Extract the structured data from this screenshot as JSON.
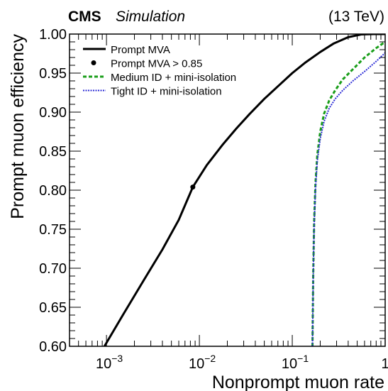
{
  "header": {
    "experiment": "CMS",
    "status": "Simulation",
    "energy": "(13 TeV)"
  },
  "chart_data": {
    "type": "line",
    "title": "",
    "xlabel": "Nonprompt muon rate",
    "ylabel": "Prompt muon efficiency",
    "xscale": "log",
    "xlim": [
      0.0004,
      1.0
    ],
    "ylim": [
      0.6,
      1.0
    ],
    "grid": false,
    "legend_position": "top-left",
    "x_tick_labels": [
      {
        "value": 0.001,
        "base": "10",
        "exp": "−3"
      },
      {
        "value": 0.01,
        "base": "10",
        "exp": "−2"
      },
      {
        "value": 0.1,
        "base": "10",
        "exp": "−1"
      },
      {
        "value": 1.0,
        "base": "1",
        "exp": ""
      }
    ],
    "y_tick_labels": [
      "0.60",
      "0.65",
      "0.70",
      "0.75",
      "0.80",
      "0.85",
      "0.90",
      "0.95",
      "1.00"
    ],
    "y_tick_values": [
      0.6,
      0.65,
      0.7,
      0.75,
      0.8,
      0.85,
      0.9,
      0.95,
      1.0
    ],
    "series": [
      {
        "name": "Prompt MVA",
        "style": "line",
        "color": "#000000",
        "x": [
          0.00095,
          0.0015,
          0.0025,
          0.004,
          0.006,
          0.0085,
          0.012,
          0.018,
          0.025,
          0.035,
          0.05,
          0.07,
          0.1,
          0.14,
          0.2,
          0.28,
          0.4,
          0.55,
          0.75,
          1.0
        ],
        "y": [
          0.6,
          0.64,
          0.684,
          0.724,
          0.762,
          0.804,
          0.832,
          0.859,
          0.879,
          0.898,
          0.917,
          0.933,
          0.95,
          0.964,
          0.977,
          0.988,
          0.996,
          0.9995,
          1.0,
          1.0
        ]
      },
      {
        "name": "Prompt MVA > 0.85",
        "style": "marker",
        "color": "#000000",
        "x": [
          0.0085
        ],
        "y": [
          0.804
        ]
      },
      {
        "name": "Medium ID + mini-isolation",
        "style": "dashed",
        "color": "#1a9e1a",
        "x": [
          0.165,
          0.168,
          0.172,
          0.178,
          0.186,
          0.2,
          0.22,
          0.25,
          0.29,
          0.35,
          0.45,
          0.6,
          0.8,
          1.0
        ],
        "y": [
          0.6,
          0.69,
          0.76,
          0.81,
          0.845,
          0.875,
          0.898,
          0.915,
          0.928,
          0.942,
          0.955,
          0.97,
          0.982,
          0.99
        ]
      },
      {
        "name": "Tight ID + mini-isolation",
        "style": "dotted",
        "color": "#2b2bd6",
        "x": [
          0.165,
          0.168,
          0.172,
          0.178,
          0.186,
          0.2,
          0.22,
          0.25,
          0.29,
          0.35,
          0.45,
          0.6,
          0.8,
          1.0
        ],
        "y": [
          0.6,
          0.688,
          0.755,
          0.803,
          0.838,
          0.866,
          0.888,
          0.905,
          0.917,
          0.928,
          0.94,
          0.952,
          0.965,
          0.976
        ]
      }
    ]
  }
}
